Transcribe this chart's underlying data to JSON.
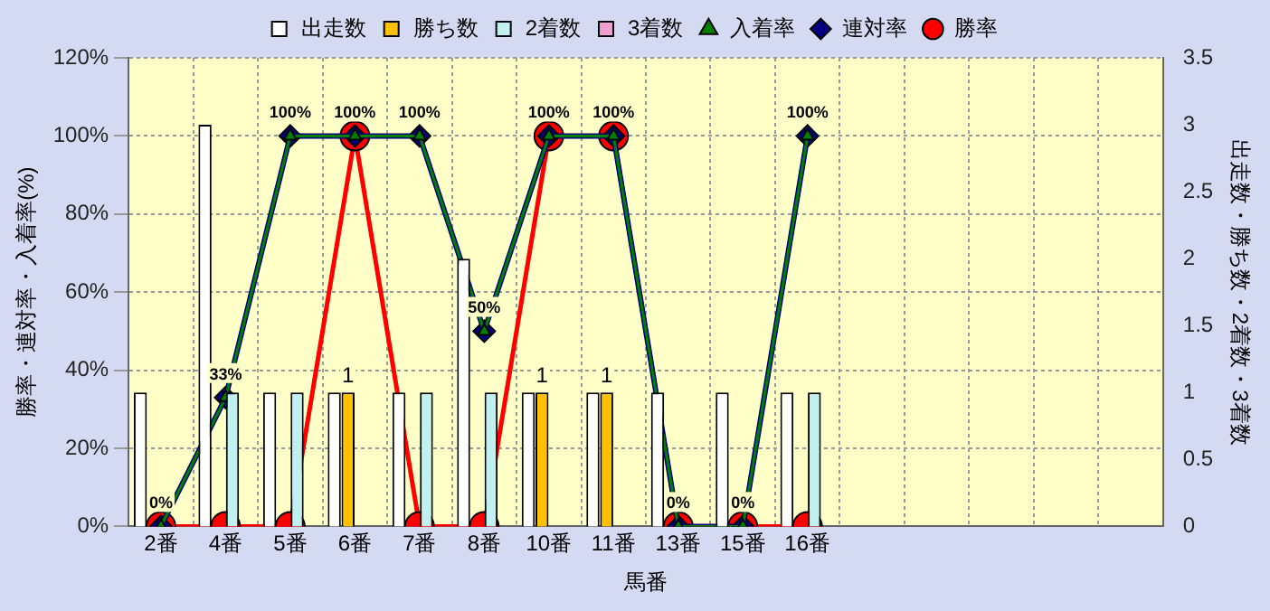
{
  "chart_data": {
    "type": "bar",
    "xlabel": "馬番",
    "ylabel": "勝率・連対率・入着率(%)",
    "y2label": "出走数・勝ち数・2着数・3着数",
    "categories": [
      "2番",
      "4番",
      "5番",
      "6番",
      "7番",
      "8番",
      "10番",
      "11番",
      "13番",
      "15番",
      "16番",
      null,
      null,
      null,
      null,
      null
    ],
    "series": [
      {
        "name": "出走数",
        "axis": "y2",
        "color": "#ffffff",
        "values": [
          1,
          3,
          1,
          1,
          1,
          2,
          1,
          1,
          1,
          1,
          1,
          null,
          null,
          null,
          null,
          null
        ]
      },
      {
        "name": "勝ち数",
        "axis": "y2",
        "color": "#ffc000",
        "values": [
          0,
          0,
          0,
          1,
          0,
          0,
          1,
          1,
          0,
          0,
          0,
          null,
          null,
          null,
          null,
          null
        ],
        "value_labels": [
          null,
          null,
          null,
          "1",
          null,
          null,
          "1",
          "1",
          null,
          null,
          null,
          null,
          null,
          null,
          null,
          null
        ]
      },
      {
        "name": "2着数",
        "axis": "y2",
        "color": "#c0f0f0",
        "values": [
          0,
          1,
          1,
          0,
          1,
          1,
          0,
          0,
          0,
          0,
          1,
          null,
          null,
          null,
          null,
          null
        ]
      },
      {
        "name": "3着数",
        "axis": "y2",
        "color": "#f0a0d0",
        "values": [
          0,
          0,
          0,
          0,
          0,
          0,
          0,
          0,
          0,
          0,
          0,
          null,
          null,
          null,
          null,
          null
        ]
      },
      {
        "name": "入着率",
        "type": "line",
        "marker": "triangle",
        "color": "#008000",
        "values": [
          0,
          33,
          100,
          100,
          100,
          50,
          100,
          100,
          0,
          0,
          100,
          null,
          null,
          null,
          null,
          null
        ]
      },
      {
        "name": "連対率",
        "type": "line",
        "marker": "diamond",
        "color": "#000080",
        "values": [
          0,
          33,
          100,
          100,
          100,
          50,
          100,
          100,
          0,
          0,
          100,
          null,
          null,
          null,
          null,
          null
        ],
        "value_labels": [
          "0%",
          "33%",
          "100%",
          "100%",
          "100%",
          "50%",
          "100%",
          "100%",
          "0%",
          "0%",
          "100%",
          null,
          null,
          null,
          null,
          null
        ]
      },
      {
        "name": "勝率",
        "type": "line",
        "marker": "circle",
        "color": "#ff0000",
        "values": [
          0,
          0,
          0,
          100,
          0,
          0,
          100,
          100,
          0,
          0,
          0,
          null,
          null,
          null,
          null,
          null
        ]
      }
    ],
    "ylim": [
      0,
      120
    ],
    "yticks": [
      {
        "value": 0,
        "label": "0%"
      },
      {
        "value": 20,
        "label": "20%"
      },
      {
        "value": 40,
        "label": "40%"
      },
      {
        "value": 60,
        "label": "60%"
      },
      {
        "value": 80,
        "label": "80%"
      },
      {
        "value": 100,
        "label": "100%"
      },
      {
        "value": 120,
        "label": "120%"
      }
    ],
    "y2lim": [
      0,
      3.5
    ],
    "y2ticks": [
      0,
      0.5,
      1,
      1.5,
      2,
      2.5,
      3,
      3.5
    ],
    "grid": true,
    "legend": "top"
  }
}
